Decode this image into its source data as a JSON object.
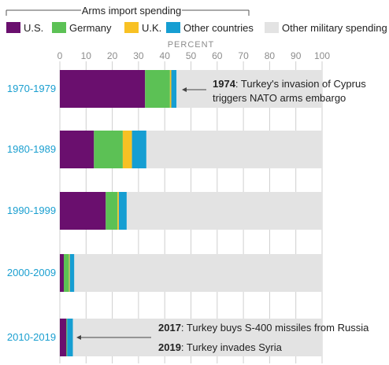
{
  "chart_data": {
    "type": "bar",
    "stacked": true,
    "orientation": "horizontal",
    "legend_group_title": "Arms import spending",
    "xlabel": "PERCENT",
    "xlim": [
      0,
      100
    ],
    "x_ticks": [
      "0",
      "10",
      "20",
      "30",
      "40",
      "50",
      "60",
      "70",
      "80",
      "90",
      "100"
    ],
    "grid": true,
    "legend_placement": "top",
    "categories": [
      "1970-1979",
      "1980-1989",
      "1990-1999",
      "2000-2009",
      "2010-2019"
    ],
    "series": [
      {
        "name": "U.S.",
        "color": "#6a0f6e",
        "values": [
          32.5,
          13,
          17.5,
          1.5,
          2.5
        ]
      },
      {
        "name": "Germany",
        "color": "#5cc155",
        "values": [
          9.5,
          11,
          4.5,
          2,
          0.3
        ]
      },
      {
        "name": "U.K.",
        "color": "#f8c124",
        "values": [
          0.5,
          3.5,
          0.5,
          0.3,
          0
        ]
      },
      {
        "name": "Other countries",
        "color": "#169ed2",
        "values": [
          2,
          5.5,
          3,
          1.7,
          2.2
        ]
      },
      {
        "name": "Other military spending",
        "color": "#e3e3e3",
        "values": [
          55.5,
          67,
          74.5,
          94.5,
          95
        ]
      }
    ],
    "annotations": [
      {
        "category": "1970-1979",
        "lines": [
          {
            "bold": "1974",
            "text": ": Turkey's invasion of Cyprus"
          },
          {
            "bold": "",
            "text": "triggers NATO arms embargo"
          }
        ]
      },
      {
        "category": "2010-2019",
        "lines": [
          {
            "bold": "2017",
            "text": ": Turkey buys S-400 missiles from Russia"
          },
          {
            "bold": "2019",
            "text": ": Turkey invades Syria"
          }
        ]
      }
    ],
    "colors": {
      "category_label": "#1a9fd0",
      "tick": "#8c8c8c",
      "text": "#222222",
      "grid": "#cfcfcf"
    }
  }
}
